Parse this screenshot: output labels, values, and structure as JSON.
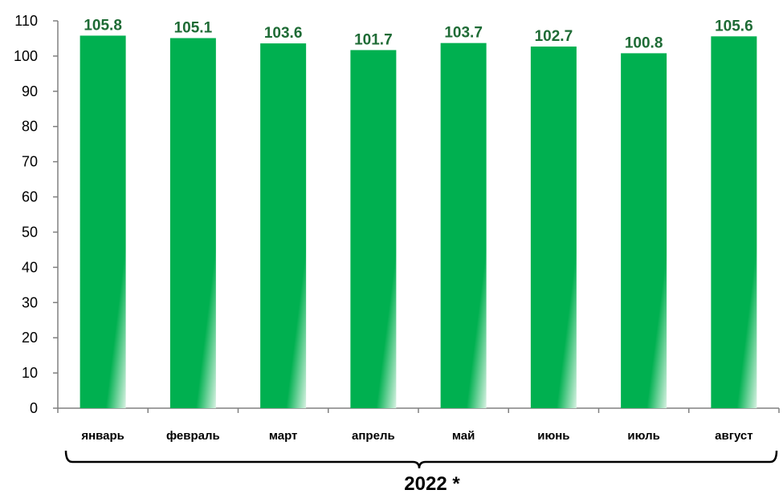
{
  "chart_data": {
    "type": "bar",
    "categories": [
      "январь",
      "февраль",
      "март",
      "апрель",
      "май",
      "июнь",
      "июль",
      "август"
    ],
    "values": [
      105.8,
      105.1,
      103.6,
      101.7,
      103.7,
      102.7,
      100.8,
      105.6
    ],
    "ylim": [
      0,
      110
    ],
    "yticks": [
      0,
      10,
      20,
      30,
      40,
      50,
      60,
      70,
      80,
      90,
      100,
      110
    ],
    "grid": false,
    "group_label": "2022 *",
    "colors": {
      "bar": "#00b050",
      "bar_fade": "#d9f2e3",
      "data_label": "#1e6b35",
      "axis": "#808080"
    }
  }
}
